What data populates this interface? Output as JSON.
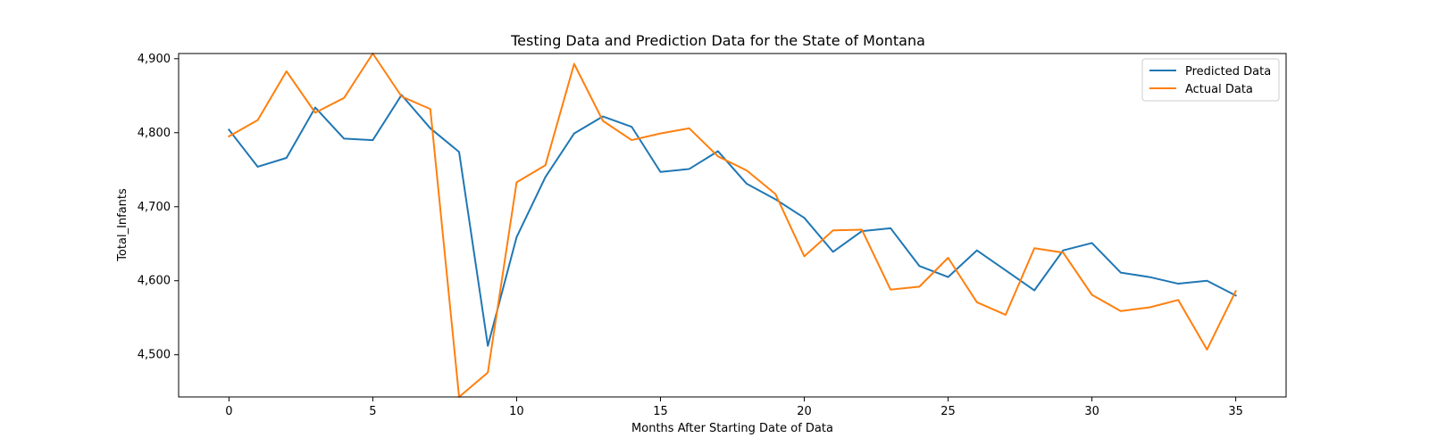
{
  "chart_data": {
    "type": "line",
    "title": "Testing Data and Prediction Data for the State of Montana",
    "xlabel": "Months After Starting Date of Data",
    "ylabel": "Total_Infants",
    "xlim": [
      -1.75,
      36.75
    ],
    "ylim": [
      4443,
      4907
    ],
    "x_ticks": [
      0,
      5,
      10,
      15,
      20,
      25,
      30,
      35
    ],
    "y_ticks": [
      4500,
      4600,
      4700,
      4800,
      4900
    ],
    "y_tick_labels": [
      "4,500",
      "4,600",
      "4,700",
      "4,800",
      "4,900"
    ],
    "grid": false,
    "legend_position": "top-right",
    "x": [
      0,
      1,
      2,
      3,
      4,
      5,
      6,
      7,
      8,
      9,
      10,
      11,
      12,
      13,
      14,
      15,
      16,
      17,
      18,
      19,
      20,
      21,
      22,
      23,
      24,
      25,
      26,
      27,
      28,
      29,
      30,
      31,
      32,
      33,
      34,
      35
    ],
    "series": [
      {
        "name": "Predicted Data",
        "color": "#1f77b4",
        "values": [
          4804,
          4754,
          4766,
          4834,
          4792,
          4790,
          4851,
          4806,
          4774,
          4512,
          4659,
          4740,
          4799,
          4822,
          4808,
          4747,
          4751,
          4775,
          4731,
          4710,
          4685,
          4639,
          4667,
          4671,
          4620,
          4605,
          4641,
          4614,
          4587,
          4641,
          4651,
          4611,
          4605,
          4596,
          4600,
          4580
        ]
      },
      {
        "name": "Actual Data",
        "color": "#ff7f0e",
        "values": [
          4795,
          4817,
          4883,
          4827,
          4847,
          4907,
          4849,
          4832,
          4443,
          4476,
          4733,
          4756,
          4893,
          4816,
          4790,
          4799,
          4806,
          4768,
          4749,
          4717,
          4633,
          4668,
          4669,
          4588,
          4592,
          4631,
          4571,
          4554,
          4644,
          4638,
          4581,
          4559,
          4564,
          4574,
          4507,
          4586
        ]
      }
    ]
  }
}
